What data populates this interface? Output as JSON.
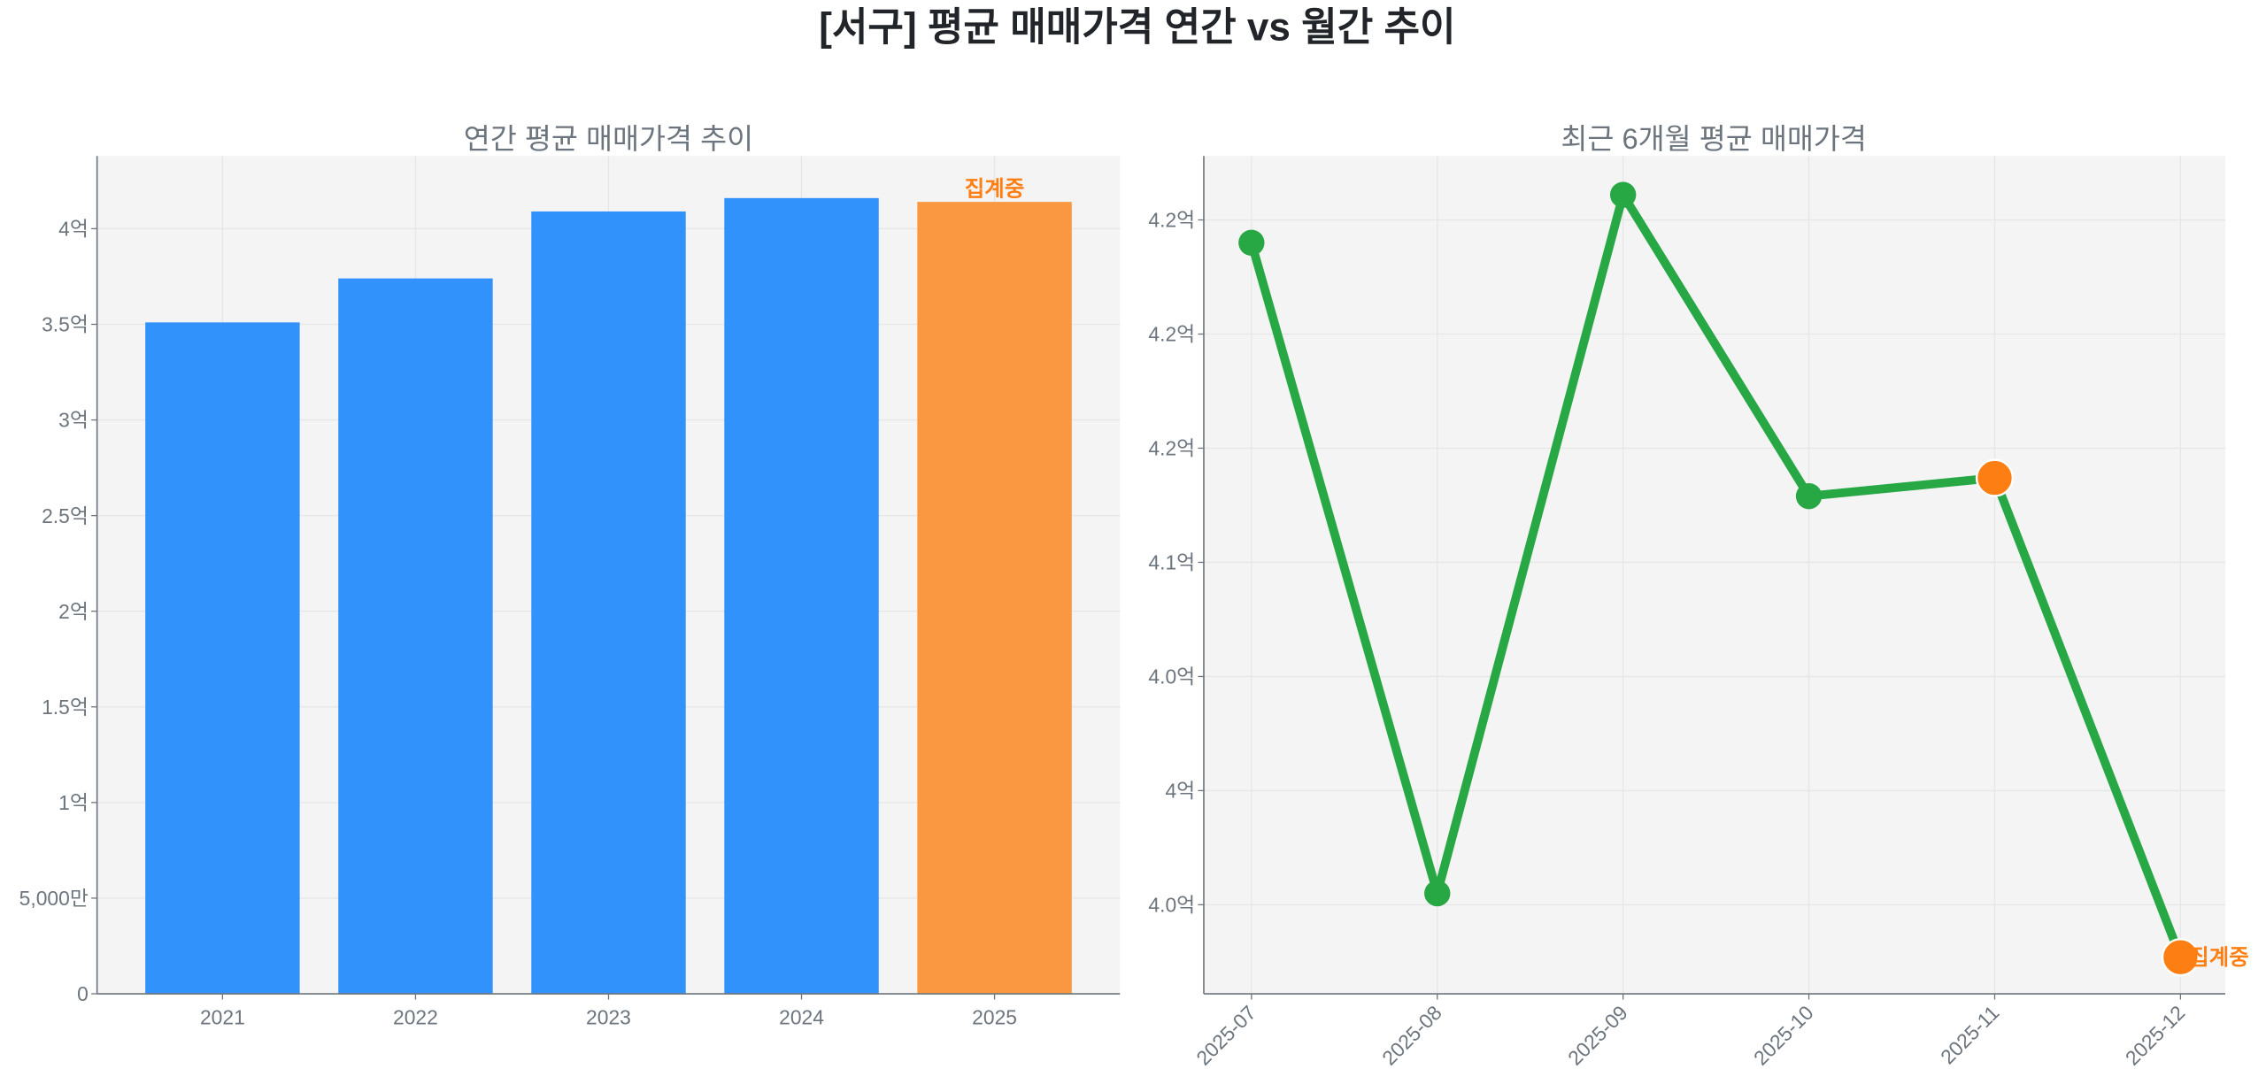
{
  "title": "[서구] 평균 매매가격 연간 vs 월간 추이",
  "colors": {
    "bar": "#3192fb",
    "bar_current": "#f99840",
    "line": "#28a745",
    "marker_current": "#fd7f14",
    "annotation": "#fd7f14",
    "plot_bg": "#f4f4f4",
    "text": "#6c757d"
  },
  "chart_data": [
    {
      "type": "bar",
      "title": "연간 평균 매매가격 추이",
      "categories": [
        "2021",
        "2022",
        "2023",
        "2024",
        "2025"
      ],
      "values": [
        3.51,
        3.74,
        4.09,
        4.16,
        4.14
      ],
      "unit": "억",
      "ylim": [
        0,
        4.38
      ],
      "yticks": [
        0,
        0.5,
        1,
        1.5,
        2,
        2.5,
        3,
        3.5,
        4
      ],
      "ytick_labels": [
        "0",
        "5,000만",
        "1억",
        "1.5억",
        "2억",
        "2.5억",
        "3억",
        "3.5억",
        "4억"
      ],
      "highlight_index": 4,
      "annotation": "집계중",
      "grid": true,
      "xlabel": "",
      "ylabel": ""
    },
    {
      "type": "line",
      "title": "최근 6개월 평균 매매가격",
      "categories": [
        "2025-07",
        "2025-08",
        "2025-09",
        "2025-10",
        "2025-11",
        "2025-12"
      ],
      "values": [
        4.24,
        3.955,
        4.261,
        4.129,
        4.137,
        3.927
      ],
      "unit": "억",
      "ylim": [
        3.911,
        4.278
      ],
      "yticks": [
        3.95,
        4.0,
        4.05,
        4.1,
        4.15,
        4.2,
        4.25
      ],
      "ytick_labels": [
        "4.0억",
        "4억",
        "4.0억",
        "4.1억",
        "4.2억",
        "4.2억",
        "4.2억"
      ],
      "highlight_indices": [
        4,
        5
      ],
      "annotation": "집계중",
      "grid": true,
      "xlabel": "",
      "ylabel": ""
    }
  ]
}
